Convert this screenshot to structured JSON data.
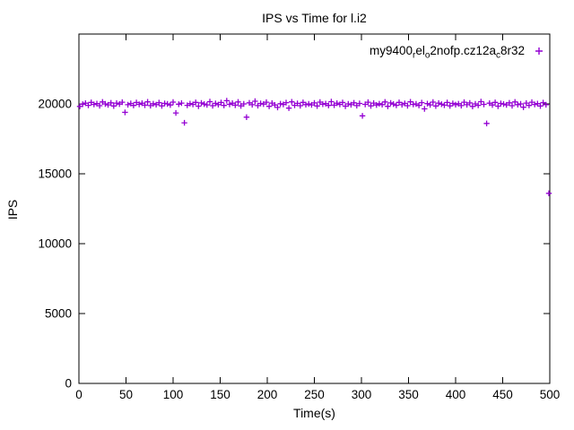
{
  "window": {
    "background": "#ffffff"
  },
  "legend": {
    "parts": [
      {
        "text": "my9400",
        "sub": false
      },
      {
        "text": "r",
        "sub": true
      },
      {
        "text": "el",
        "sub": false
      },
      {
        "text": "o",
        "sub": true
      },
      {
        "text": "2nofp.cz12a",
        "sub": false
      },
      {
        "text": "c",
        "sub": true
      },
      {
        "text": "8r32",
        "sub": false
      }
    ],
    "marker": "+",
    "marker_color": "#9400d3"
  },
  "chart_data": {
    "type": "scatter",
    "title": "IPS vs Time for l.i2",
    "xlabel": "Time(s)",
    "ylabel": "IPS",
    "xlim": [
      0,
      500
    ],
    "ylim": [
      0,
      25000
    ],
    "x_ticks": [
      0,
      50,
      100,
      150,
      200,
      250,
      300,
      350,
      400,
      450,
      500
    ],
    "y_ticks": [
      0,
      5000,
      10000,
      15000,
      20000
    ],
    "grid": false,
    "legend_position": "top-right-inside",
    "series_name": "my9400_rel_o2nofp.cz12a_8r32",
    "marker": "+",
    "marker_color": "#9400d3",
    "baseline": 20000,
    "points": [
      [
        1,
        19820
      ],
      [
        4,
        19980
      ],
      [
        7,
        20050
      ],
      [
        10,
        19900
      ],
      [
        13,
        20110
      ],
      [
        16,
        19960
      ],
      [
        19,
        20020
      ],
      [
        22,
        19870
      ],
      [
        25,
        20140
      ],
      [
        28,
        20000
      ],
      [
        31,
        19930
      ],
      [
        34,
        20080
      ],
      [
        37,
        19850
      ],
      [
        40,
        20060
      ],
      [
        43,
        19990
      ],
      [
        46,
        20120
      ],
      [
        49,
        19400
      ],
      [
        52,
        19940
      ],
      [
        55,
        20030
      ],
      [
        58,
        19890
      ],
      [
        61,
        20100
      ],
      [
        64,
        19970
      ],
      [
        67,
        20050
      ],
      [
        70,
        19910
      ],
      [
        73,
        20150
      ],
      [
        76,
        19880
      ],
      [
        79,
        20010
      ],
      [
        82,
        19950
      ],
      [
        85,
        20090
      ],
      [
        88,
        19860
      ],
      [
        91,
        20040
      ],
      [
        94,
        20000
      ],
      [
        97,
        19920
      ],
      [
        100,
        20130
      ],
      [
        103,
        19350
      ],
      [
        106,
        19980
      ],
      [
        109,
        20060
      ],
      [
        112,
        18650
      ],
      [
        115,
        19900
      ],
      [
        118,
        20020
      ],
      [
        121,
        19960
      ],
      [
        124,
        20110
      ],
      [
        127,
        19840
      ],
      [
        130,
        20070
      ],
      [
        133,
        19990
      ],
      [
        136,
        19930
      ],
      [
        139,
        20160
      ],
      [
        142,
        19870
      ],
      [
        145,
        20040
      ],
      [
        148,
        19950
      ],
      [
        151,
        20100
      ],
      [
        154,
        19890
      ],
      [
        157,
        20230
      ],
      [
        160,
        19970
      ],
      [
        163,
        20050
      ],
      [
        166,
        19910
      ],
      [
        169,
        20140
      ],
      [
        172,
        19860
      ],
      [
        175,
        20000
      ],
      [
        178,
        19050
      ],
      [
        181,
        20080
      ],
      [
        184,
        19940
      ],
      [
        187,
        20190
      ],
      [
        190,
        19880
      ],
      [
        193,
        20030
      ],
      [
        196,
        19990
      ],
      [
        199,
        20120
      ],
      [
        202,
        19830
      ],
      [
        205,
        20060
      ],
      [
        208,
        19920
      ],
      [
        211,
        19750
      ],
      [
        214,
        20010
      ],
      [
        217,
        19960
      ],
      [
        220,
        20090
      ],
      [
        223,
        19700
      ],
      [
        226,
        20150
      ],
      [
        229,
        19900
      ],
      [
        232,
        20040
      ],
      [
        235,
        19870
      ],
      [
        238,
        20110
      ],
      [
        241,
        19950
      ],
      [
        244,
        20000
      ],
      [
        247,
        19930
      ],
      [
        250,
        20070
      ],
      [
        253,
        19850
      ],
      [
        256,
        20130
      ],
      [
        259,
        19980
      ],
      [
        262,
        20020
      ],
      [
        265,
        19890
      ],
      [
        268,
        20160
      ],
      [
        271,
        19910
      ],
      [
        274,
        20050
      ],
      [
        277,
        19960
      ],
      [
        280,
        20100
      ],
      [
        283,
        19840
      ],
      [
        286,
        20000
      ],
      [
        289,
        19940
      ],
      [
        292,
        20080
      ],
      [
        295,
        19880
      ],
      [
        298,
        20030
      ],
      [
        301,
        19150
      ],
      [
        304,
        19970
      ],
      [
        307,
        20120
      ],
      [
        310,
        19860
      ],
      [
        313,
        20060
      ],
      [
        316,
        19920
      ],
      [
        319,
        20010
      ],
      [
        322,
        19950
      ],
      [
        325,
        20140
      ],
      [
        328,
        19830
      ],
      [
        331,
        20070
      ],
      [
        334,
        19990
      ],
      [
        337,
        19900
      ],
      [
        340,
        20110
      ],
      [
        343,
        19940
      ],
      [
        346,
        20040
      ],
      [
        349,
        19870
      ],
      [
        352,
        20150
      ],
      [
        355,
        19960
      ],
      [
        358,
        20000
      ],
      [
        361,
        19890
      ],
      [
        364,
        20090
      ],
      [
        367,
        19650
      ],
      [
        370,
        20020
      ],
      [
        373,
        19930
      ],
      [
        376,
        20130
      ],
      [
        379,
        19850
      ],
      [
        382,
        20060
      ],
      [
        385,
        19980
      ],
      [
        388,
        19910
      ],
      [
        391,
        20100
      ],
      [
        394,
        19860
      ],
      [
        397,
        20040
      ],
      [
        400,
        19950
      ],
      [
        403,
        20010
      ],
      [
        406,
        19880
      ],
      [
        409,
        20120
      ],
      [
        412,
        19940
      ],
      [
        415,
        20070
      ],
      [
        418,
        19820
      ],
      [
        421,
        20000
      ],
      [
        424,
        19900
      ],
      [
        427,
        20160
      ],
      [
        430,
        19970
      ],
      [
        433,
        18600
      ],
      [
        436,
        20050
      ],
      [
        439,
        19920
      ],
      [
        442,
        20110
      ],
      [
        445,
        19840
      ],
      [
        448,
        20030
      ],
      [
        451,
        19990
      ],
      [
        454,
        19930
      ],
      [
        457,
        20080
      ],
      [
        460,
        19870
      ],
      [
        463,
        20140
      ],
      [
        466,
        19950
      ],
      [
        469,
        20000
      ],
      [
        472,
        19760
      ],
      [
        475,
        20060
      ],
      [
        478,
        19890
      ],
      [
        481,
        20120
      ],
      [
        484,
        19960
      ],
      [
        487,
        20020
      ],
      [
        490,
        19850
      ],
      [
        493,
        20090
      ],
      [
        496,
        19940
      ],
      [
        499,
        13600
      ]
    ]
  }
}
